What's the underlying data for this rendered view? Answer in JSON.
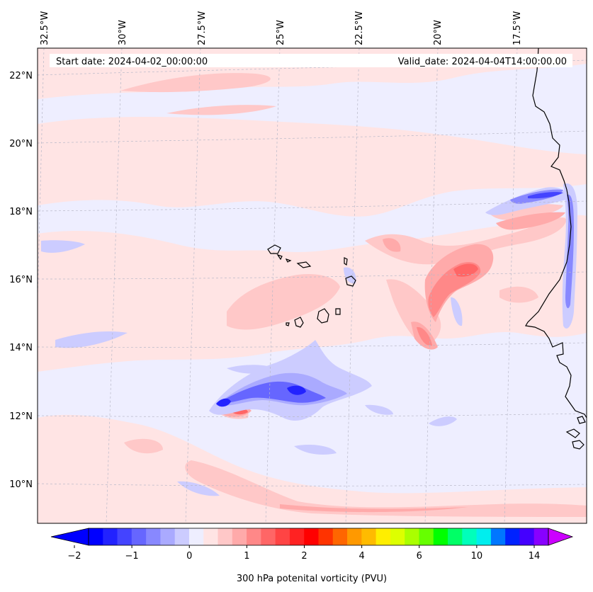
{
  "map": {
    "start_label": "Start date: 2024-04-02_00:00:00",
    "valid_label": "Valid_date: 2024-04-04T14:00:00.00",
    "field": "300 hPa potential vorticity",
    "background_color": "#eeeeff",
    "coastline_color": "#000000"
  },
  "lon_labels": [
    "32.5°W",
    "30°W",
    "27.5°W",
    "25°W",
    "22.5°W",
    "20°W",
    "17.5°W"
  ],
  "lat_labels": [
    "22°N",
    "20°N",
    "18°N",
    "16°N",
    "14°N",
    "12°N",
    "10°N"
  ],
  "colorbar": {
    "label": "300 hPa potenital vorticity (PVU)",
    "tick_labels": [
      "−2",
      "−1",
      "0",
      "1",
      "2",
      "4",
      "6",
      "10",
      "14"
    ],
    "colors": [
      "#0000ff",
      "#2222ff",
      "#4444ff",
      "#6666ff",
      "#8888ff",
      "#aaaaff",
      "#ccccff",
      "#eeeeff",
      "#ffe4e4",
      "#ffc8c8",
      "#ffaaaa",
      "#ff8888",
      "#ff6666",
      "#ff4444",
      "#ff2222",
      "#ff0000",
      "#ff3300",
      "#ff6600",
      "#ff9900",
      "#ffbb00",
      "#ffee00",
      "#ddff00",
      "#aaff00",
      "#66ff00",
      "#00ff00",
      "#00ff66",
      "#00ffbb",
      "#00eeee",
      "#0077ff",
      "#0022ff",
      "#4400ff",
      "#8800ff"
    ],
    "extend_low_color": "#0000ff",
    "extend_high_color": "#cc00ff"
  }
}
